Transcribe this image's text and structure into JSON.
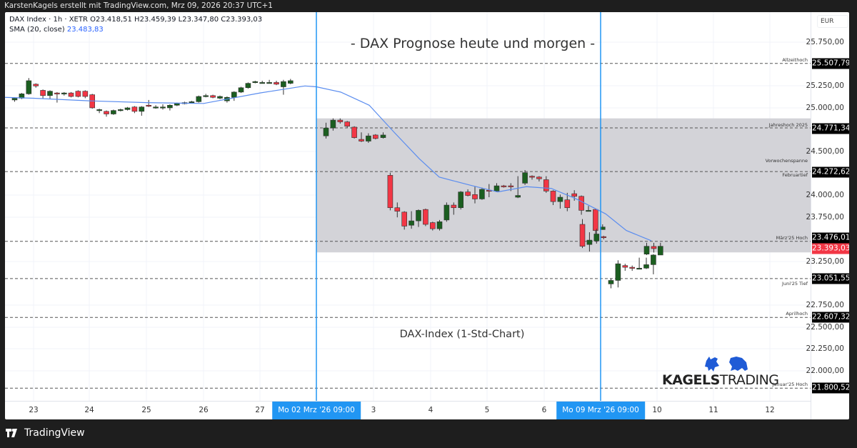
{
  "header": {
    "credit": "KarstenKagels erstellt mit TradingView.com, Mrz 09, 2026 20:37 UTC+1"
  },
  "legend": {
    "symbol_line": "DAX Index · 1h · XETR  O23.418,51  H23.459,39  L23.347,80  C23.393,03",
    "sma_label": "SMA (20, close)",
    "sma_value": "23.483,83"
  },
  "axis": {
    "currency": "EUR",
    "y_ticks": [
      "25.750,00",
      "25.250,00",
      "25.000,00",
      "24.500,00",
      "24.000,00",
      "23.750,00",
      "23.250,00",
      "22.750,00",
      "22.500,00",
      "22.250,00",
      "22.000,00"
    ],
    "x_ticks": [
      "23",
      "24",
      "25",
      "26",
      "27",
      "3",
      "4",
      "5",
      "6",
      "10",
      "11",
      "12"
    ],
    "x_badges": [
      "Mo 02 Mrz '26   09:00",
      "Mo 09 Mrz '26   09:00"
    ]
  },
  "annotations": {
    "title": "- DAX Prognose heute und morgen -",
    "subtitle": "DAX-Index (1-Std-Chart)",
    "levels": [
      {
        "label": "Allzeithoch",
        "value": "25.507,79"
      },
      {
        "label": "Jahreshoch 2025",
        "value": "24.771,34"
      },
      {
        "label": "Februartief",
        "value": "24.272,62"
      },
      {
        "label": "März'25 Hoch",
        "value": "23.476,01"
      },
      {
        "label": "Juni'25 Tief",
        "value": "23.051,55"
      },
      {
        "label": "Aprilhoch",
        "value": "22.607,32"
      },
      {
        "label": "Januar'25 Hoch",
        "value": "21.800,52"
      }
    ],
    "zone_label": "Vorwochenspanne",
    "last_price": "23.393,03"
  },
  "branding": {
    "logo_bold": "KAGELS",
    "logo_light": "TRADING",
    "footer": "TradingView"
  },
  "colors": {
    "up": "#1b5e20",
    "down": "#f23645",
    "sma": "#5b8def",
    "marker": "#2196f3",
    "zone": "#d1d1d6"
  },
  "chart_data": {
    "type": "candlestick",
    "title": "- DAX Prognose heute und morgen -",
    "subtitle": "DAX-Index (1-Std-Chart)",
    "symbol": "DAX Index",
    "interval": "1h",
    "exchange": "XETR",
    "last_bar": {
      "open": 23418.51,
      "high": 23459.39,
      "low": 23347.8,
      "close": 23393.03
    },
    "ylim": [
      21700,
      25900
    ],
    "ylabel": "EUR",
    "x_categories": [
      "Feb 23",
      "Feb 24",
      "Feb 25",
      "Feb 26",
      "Feb 27",
      "Mar 2",
      "Mar 3",
      "Mar 4",
      "Mar 5",
      "Mar 6",
      "Mar 9",
      "Mar 10",
      "Mar 11",
      "Mar 12"
    ],
    "series": [
      {
        "name": "SMA (20, close)",
        "last": 23483.83
      },
      {
        "name": "Vorwochenspanne (zone)",
        "range": [
          23350,
          24880
        ]
      }
    ],
    "horizontal_levels": [
      {
        "name": "Allzeithoch",
        "value": 25507.79
      },
      {
        "name": "Jahreshoch 2025",
        "value": 24771.34
      },
      {
        "name": "Februartief",
        "value": 24272.62
      },
      {
        "name": "März'25 Hoch",
        "value": 23476.01
      },
      {
        "name": "Juni'25 Tief",
        "value": 23051.55
      },
      {
        "name": "Aprilhoch",
        "value": 22607.32
      },
      {
        "name": "Januar'25 Hoch",
        "value": 21800.52
      }
    ],
    "vertical_markers": [
      "Mo 02 Mrz '26 09:00",
      "Mo 09 Mrz '26 09:00"
    ],
    "daily_close_approx": [
      {
        "day": "Feb 23",
        "close": 25100
      },
      {
        "day": "Feb 24",
        "close": 24970
      },
      {
        "day": "Feb 25",
        "close": 25060
      },
      {
        "day": "Feb 26",
        "close": 25200
      },
      {
        "day": "Feb 27",
        "close": 25280
      },
      {
        "day": "Mar 2",
        "close": 24640
      },
      {
        "day": "Mar 3",
        "close": 23790
      },
      {
        "day": "Mar 4",
        "close": 24190
      },
      {
        "day": "Mar 5",
        "close": 23930
      },
      {
        "day": "Mar 6",
        "close": 23460
      },
      {
        "day": "Mar 9",
        "close": 23393
      }
    ],
    "grid": true
  }
}
